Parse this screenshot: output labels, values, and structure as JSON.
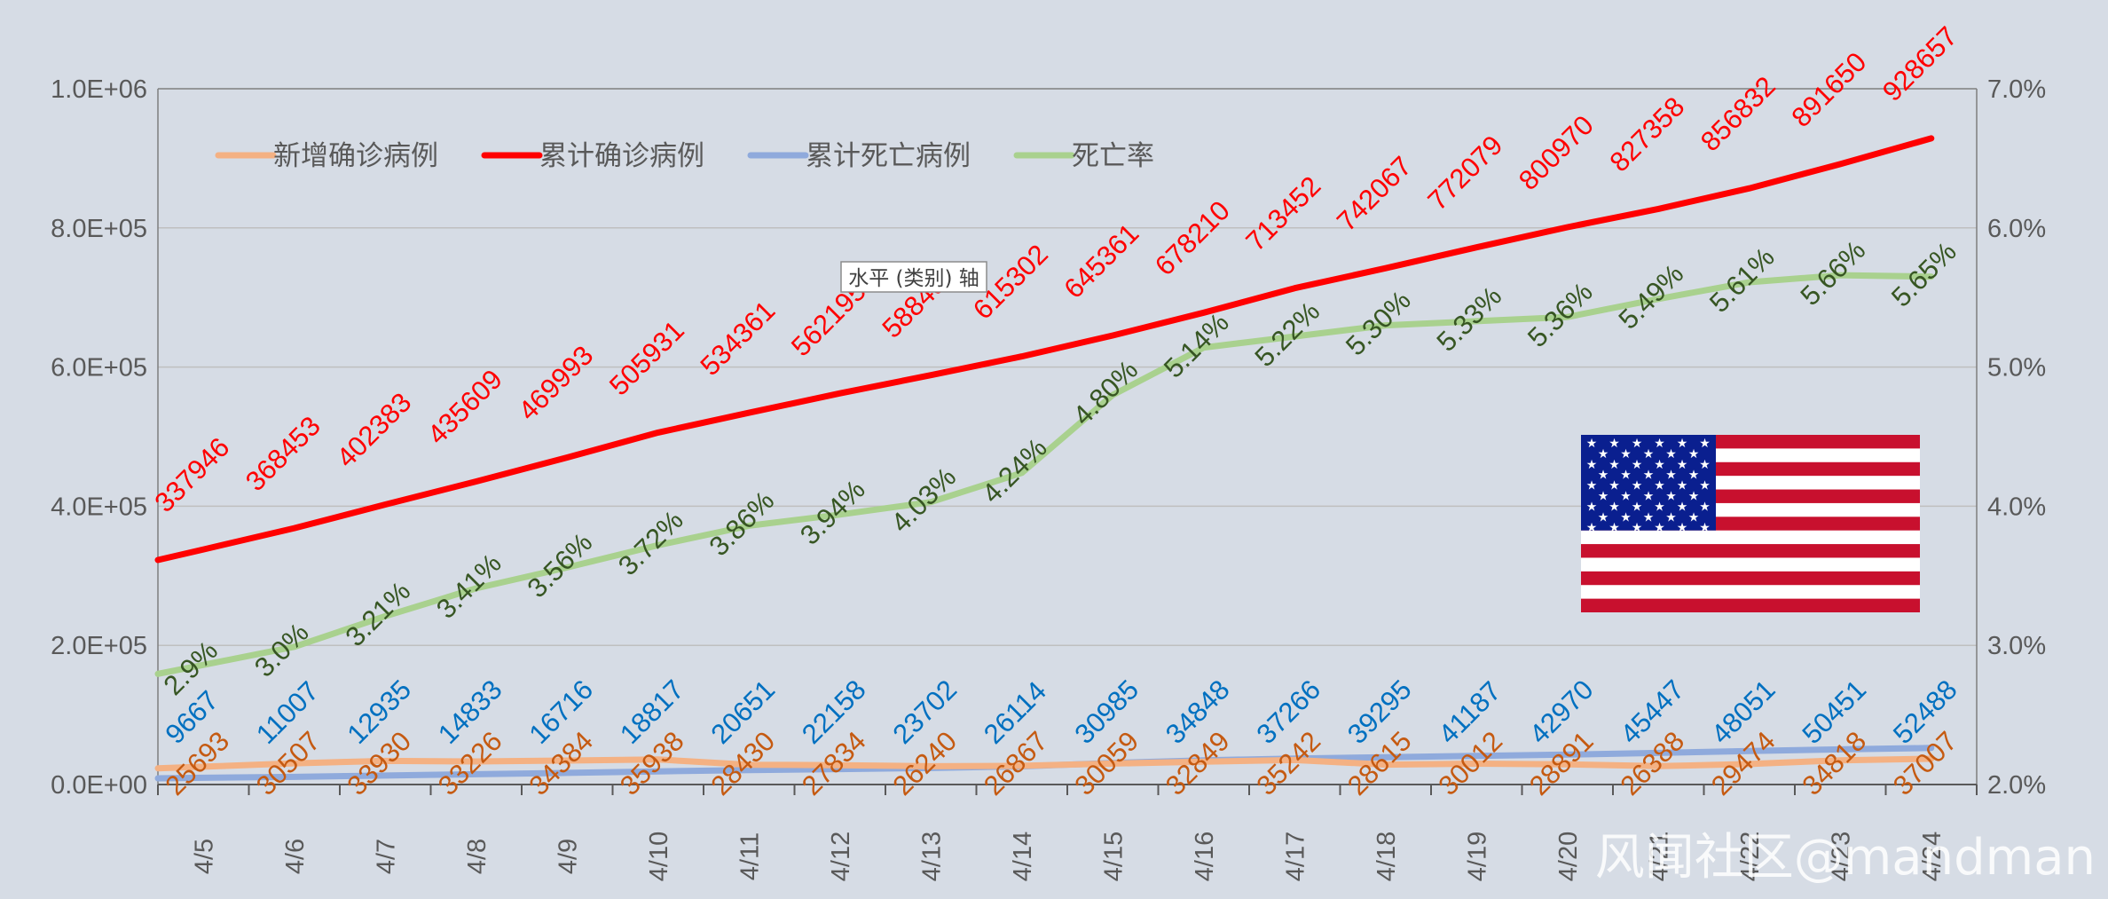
{
  "chart_data": {
    "type": "line",
    "categories": [
      "4/5",
      "4/6",
      "4/7",
      "4/8",
      "4/9",
      "4/10",
      "4/11",
      "4/12",
      "4/13",
      "4/14",
      "4/15",
      "4/16",
      "4/17",
      "4/18",
      "4/19",
      "4/20",
      "4/21",
      "4/22",
      "4/23",
      "4/24"
    ],
    "y_left": {
      "ylim": [
        0,
        1000000
      ],
      "ticks": [
        "0.0E+00",
        "2.0E+05",
        "4.0E+05",
        "6.0E+05",
        "8.0E+05",
        "1.0E+06"
      ]
    },
    "y_right": {
      "ylim": [
        2.0,
        7.0
      ],
      "ticks": [
        "2.0%",
        "3.0%",
        "4.0%",
        "5.0%",
        "6.0%",
        "7.0%"
      ]
    },
    "grid": true,
    "legend_position": "top-left",
    "series": [
      {
        "name": "新增确诊病例",
        "axis": "left",
        "color": "#f4b183",
        "values": [
          25693,
          30507,
          33930,
          33226,
          34384,
          35938,
          28430,
          27834,
          26240,
          26867,
          30059,
          32849,
          35242,
          28615,
          30012,
          28891,
          26388,
          29474,
          34818,
          37007
        ],
        "labels": [
          "25693",
          "30507",
          "33930",
          "33226",
          "34384",
          "35938",
          "28430",
          "27834",
          "26240",
          "26867",
          "30059",
          "32849",
          "35242",
          "28615",
          "30012",
          "28891",
          "26388",
          "29474",
          "34818",
          "37007"
        ],
        "label_color": "#c55a11"
      },
      {
        "name": "累计确诊病例",
        "axis": "left",
        "color": "#ff0000",
        "values": [
          337946,
          368453,
          402383,
          435609,
          469993,
          505931,
          534361,
          562195,
          588435,
          615302,
          645361,
          678210,
          713452,
          742067,
          772079,
          800970,
          827358,
          856832,
          891650,
          928657
        ],
        "labels": [
          "337946",
          "368453",
          "402383",
          "435609",
          "469993",
          "505931",
          "534361",
          "562195",
          "588435",
          "615302",
          "645361",
          "678210",
          "713452",
          "742067",
          "772079",
          "800970",
          "827358",
          "856832",
          "891650",
          "928657"
        ],
        "label_color": "#ff0000"
      },
      {
        "name": "累计死亡病例",
        "axis": "left",
        "color": "#8faadc",
        "values": [
          9667,
          11007,
          12935,
          14833,
          16716,
          18817,
          20651,
          22158,
          23702,
          26114,
          30985,
          34848,
          37266,
          39295,
          41187,
          42970,
          45447,
          48051,
          50451,
          52488
        ],
        "labels": [
          "9667",
          "11007",
          "12935",
          "14833",
          "16716",
          "18817",
          "20651",
          "22158",
          "23702",
          "26114",
          "30985",
          "34848",
          "37266",
          "39295",
          "41187",
          "42970",
          "45447",
          "48051",
          "50451",
          "52488"
        ],
        "label_color": "#0070c0"
      },
      {
        "name": "死亡率",
        "axis": "right",
        "color": "#a9d18e",
        "values": [
          2.86,
          2.99,
          3.21,
          3.41,
          3.56,
          3.72,
          3.86,
          3.94,
          4.03,
          4.24,
          4.8,
          5.14,
          5.22,
          5.3,
          5.33,
          5.36,
          5.49,
          5.61,
          5.66,
          5.65
        ],
        "labels": [
          "2.9%",
          "3.0%",
          "3.21%",
          "3.41%",
          "3.56%",
          "3.72%",
          "3.86%",
          "3.94%",
          "4.03%",
          "4.24%",
          "4.80%",
          "5.14%",
          "5.22%",
          "5.30%",
          "5.33%",
          "5.36%",
          "5.49%",
          "5.61%",
          "5.66%",
          "5.65%"
        ],
        "label_color": "#375623"
      }
    ]
  },
  "tooltip": "水平 (类别) 轴",
  "watermark": "风闻社区@mandman",
  "flag": {
    "stripe_red": "#c8102e",
    "canton_blue": "#0a1f8f",
    "white": "#ffffff"
  }
}
